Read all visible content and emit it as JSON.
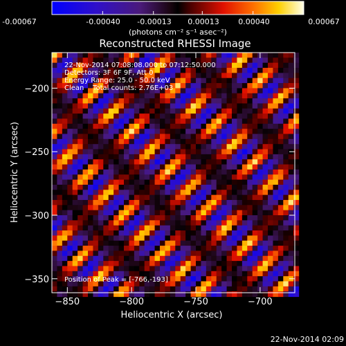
{
  "colorbar": {
    "tick_labels": [
      "-0.00067",
      "-0.00040",
      "-0.00013",
      "0.00013",
      "0.00040",
      "0.00067"
    ],
    "vmin": -0.00067,
    "vmax": 0.00067,
    "unit_label": "(photons cm⁻² s⁻¹ asec⁻²)"
  },
  "chart_data": {
    "type": "heatmap",
    "title": "Reconstructed RHESSI Image",
    "xlabel": "Heliocentric X (arcsec)",
    "ylabel": "Heliocentric Y (arcsec)",
    "xlim": [
      -862,
      -673
    ],
    "ylim": [
      -361,
      -172
    ],
    "x_ticks": [
      -850,
      -800,
      -750,
      -700
    ],
    "y_ticks": [
      -200,
      -250,
      -300,
      -350
    ],
    "x_tick_labels": [
      "−850",
      "−800",
      "−750",
      "−700"
    ],
    "y_tick_labels": [
      "−200",
      "−250",
      "−300",
      "−350"
    ],
    "pixel_size_arcsec": 4,
    "pattern": "diagonal striped back-projection fringes, alternating bright (yellow/white) and dark (blue/black) bands running from upper-left to lower-right",
    "peak_x": -766,
    "peak_y": -193,
    "annotations": {
      "time": "22-Nov-2014 07:08:08.000 to 07:12:50.000",
      "detectors": "Detectors: 3F 6F 9F, Att 0",
      "energy": "Energy Range: 25.0 - 50.0 keV",
      "clean": "Clean    Total counts: 2.76E+03",
      "peak": "Position of Peak = [-766,-193]"
    }
  },
  "footer": {
    "timestamp": "22-Nov-2014 02:09"
  }
}
